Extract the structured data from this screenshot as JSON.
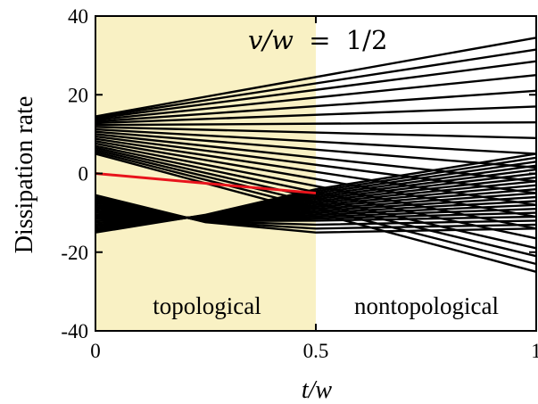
{
  "chart_data": {
    "type": "line",
    "title": "",
    "xlabel": "t/w",
    "ylabel": "Dissipation rate",
    "xlim": [
      0,
      1
    ],
    "ylim": [
      -40,
      40
    ],
    "x_ticks": [
      0,
      0.5,
      1
    ],
    "x_tick_labels": [
      "0",
      "0.5",
      "1"
    ],
    "y_ticks": [
      -40,
      -20,
      0,
      20,
      40
    ],
    "y_tick_labels": [
      "-40",
      "-20",
      "0",
      "20",
      "40"
    ],
    "grid": false,
    "legend": "none",
    "annotation": {
      "lhs": "v/w",
      "equals": "=",
      "rhs": "1/2"
    },
    "regions": [
      {
        "label": "topological",
        "x_range": [
          0,
          0.5
        ],
        "fill": "#f9f1c4"
      },
      {
        "label": "nontopological",
        "x_range": [
          0.5,
          1
        ],
        "fill": "#ffffff"
      }
    ],
    "line_colors": {
      "bands": "#000000",
      "highlight": "#e8141c"
    },
    "upper_bands": {
      "count": 20,
      "y_at_0": [
        5.0,
        5.5,
        6.0,
        6.5,
        7.0,
        7.6,
        8.2,
        8.8,
        9.4,
        10.0,
        10.6,
        11.2,
        11.8,
        12.3,
        12.8,
        13.2,
        13.6,
        14.0,
        14.3,
        14.5
      ],
      "y_at_1": [
        -25.0,
        -23.0,
        -21.0,
        -19.0,
        -16.5,
        -14.0,
        -11.0,
        -8.0,
        -5.0,
        -2.0,
        1.5,
        5.0,
        9.0,
        13.0,
        17.0,
        21.0,
        25.0,
        28.5,
        31.5,
        34.5
      ]
    },
    "lower_bands": {
      "count": 20,
      "points_x": [
        0,
        0.25,
        0.5,
        1
      ],
      "y_at_0": [
        -15.0,
        -14.5,
        -14.0,
        -13.5,
        -13.0,
        -12.5,
        -12.0,
        -11.5,
        -11.0,
        -10.5,
        -10.0,
        -9.5,
        -9.0,
        -8.5,
        -8.0,
        -7.5,
        -7.0,
        -6.5,
        -6.0,
        -5.5
      ],
      "y_at_025": [
        -10.5,
        -10.6,
        -10.7,
        -10.8,
        -10.9,
        -11.0,
        -11.1,
        -11.2,
        -11.3,
        -11.4,
        -11.5,
        -11.6,
        -11.7,
        -11.8,
        -11.9,
        -12.0,
        -12.1,
        -12.2,
        -12.3,
        -12.4
      ],
      "y_at_05": [
        -4.0,
        -4.5,
        -5.0,
        -5.5,
        -6.0,
        -6.5,
        -7.0,
        -7.5,
        -8.0,
        -8.5,
        -9.0,
        -9.5,
        -10.0,
        -10.5,
        -11.0,
        -11.5,
        -12.0,
        -13.0,
        -14.0,
        -15.0
      ],
      "y_at_1": [
        5.0,
        4.0,
        3.0,
        2.0,
        1.0,
        0.0,
        -1.0,
        -2.0,
        -3.0,
        -4.0,
        -5.0,
        -6.0,
        -7.0,
        -8.0,
        -9.0,
        -10.0,
        -11.0,
        -12.0,
        -13.0,
        -14.0
      ]
    },
    "highlight_series": {
      "x": [
        0,
        0.5
      ],
      "y": [
        0,
        -5
      ]
    }
  }
}
